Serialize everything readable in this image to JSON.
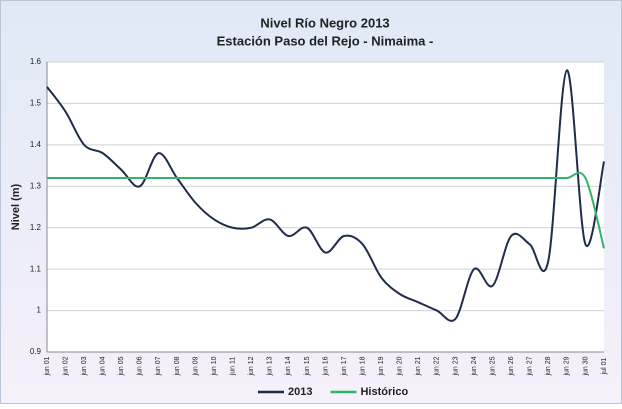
{
  "chart_data": {
    "type": "line",
    "title": "Nivel Río Negro  2013",
    "subtitle": "Estación Paso del Rejo - Nimaima -",
    "y_label": "Nivel (m)",
    "categories": [
      "jun 01",
      "jun 02",
      "jun 03",
      "jun 04",
      "jun 05",
      "jun 06",
      "jun 07",
      "jun 08",
      "jun 09",
      "jun 10",
      "jun 11",
      "jun 12",
      "jun 13",
      "jun 14",
      "jun 15",
      "jun 16",
      "jun 17",
      "jun 18",
      "jun 19",
      "jun 20",
      "jun 21",
      "jun 22",
      "jun 23",
      "jun 24",
      "jun 25",
      "jun 26",
      "jun 27",
      "jun 28",
      "jun 29",
      "jun 30",
      "jul 01"
    ],
    "series": [
      {
        "name": "2013",
        "color": "#1f2d4a",
        "values": [
          1.54,
          1.48,
          1.4,
          1.38,
          1.34,
          1.3,
          1.38,
          1.32,
          1.26,
          1.22,
          1.2,
          1.2,
          1.22,
          1.18,
          1.2,
          1.14,
          1.18,
          1.16,
          1.08,
          1.04,
          1.02,
          1.0,
          0.98,
          1.1,
          1.06,
          1.18,
          1.16,
          1.12,
          1.58,
          1.16,
          1.36
        ]
      },
      {
        "name": "Histórico",
        "color": "#33b36b",
        "values": [
          1.32,
          1.32,
          1.32,
          1.32,
          1.32,
          1.32,
          1.32,
          1.32,
          1.32,
          1.32,
          1.32,
          1.32,
          1.32,
          1.32,
          1.32,
          1.32,
          1.32,
          1.32,
          1.32,
          1.32,
          1.32,
          1.32,
          1.32,
          1.32,
          1.32,
          1.32,
          1.32,
          1.32,
          1.32,
          1.32,
          1.15
        ]
      }
    ],
    "ylim": [
      0.9,
      1.6
    ],
    "yticks": [
      0.9,
      1,
      1.1,
      1.2,
      1.3,
      1.4,
      1.5,
      1.6
    ],
    "grid": true,
    "legend": "bottom"
  }
}
